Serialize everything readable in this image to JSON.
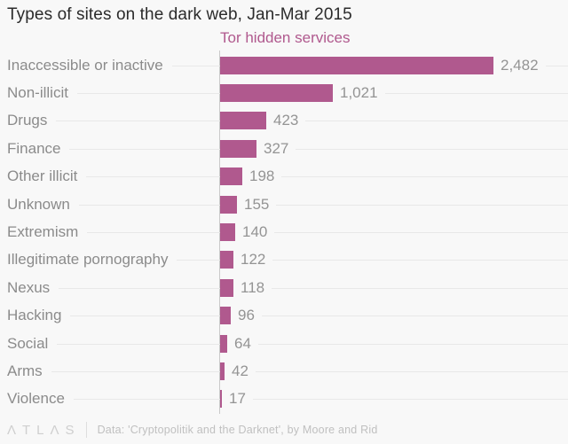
{
  "title": "Types of sites on the dark web, Jan-Mar 2015",
  "chart_data": {
    "type": "bar",
    "orientation": "horizontal",
    "series_label": "Tor hidden services",
    "categories": [
      "Inaccessible or inactive",
      "Non-illicit",
      "Drugs",
      "Finance",
      "Other illicit",
      "Unknown",
      "Extremism",
      "Illegitimate pornography",
      "Nexus",
      "Hacking",
      "Social",
      "Arms",
      "Violence"
    ],
    "values": [
      2482,
      1021,
      423,
      327,
      198,
      155,
      140,
      122,
      118,
      96,
      64,
      42,
      17
    ],
    "value_labels": [
      "2,482",
      "1,021",
      "423",
      "327",
      "198",
      "155",
      "140",
      "122",
      "118",
      "96",
      "64",
      "42",
      "17"
    ],
    "xlim": [
      0,
      2482
    ],
    "grid": "light row leader lines behind labels and bars",
    "legend_position": "top, as colored series label",
    "bar_color": "#b0598e"
  },
  "footer": {
    "logo_text": "ΛTLΛS",
    "source": "Data: 'Cryptopolitik and the Darknet', by Moore and Rid"
  },
  "colors": {
    "background": "#f8f8f8",
    "bar": "#b0598e",
    "series_label": "#b0598e",
    "title_text": "#2b2b2b",
    "category_text": "#8b8b8b",
    "value_text": "#949494",
    "axis_line": "#c9c9c9",
    "leader_line": "#e8e8e8",
    "footer_text": "#c0c0c0"
  }
}
